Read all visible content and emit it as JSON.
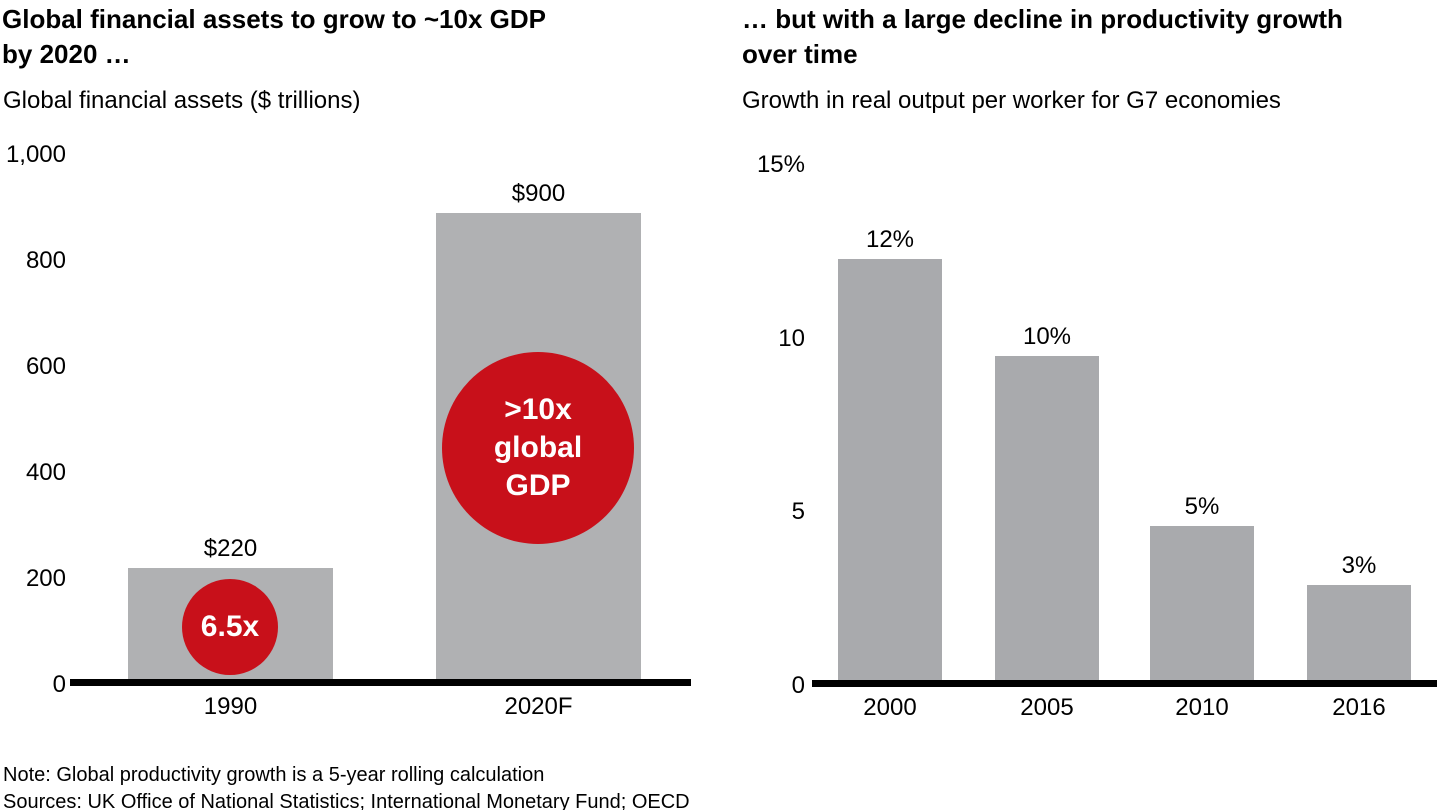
{
  "colors": {
    "background": "#ffffff",
    "bar_gray_left": "#b0b1b3",
    "bar_gray_right": "#a9aaad",
    "accent_red": "#c8101a",
    "axis_black": "#000000",
    "text": "#000000"
  },
  "chart_data": [
    {
      "type": "bar",
      "title": "Global financial assets to grow to ~10x GDP by 2020 …",
      "title_lines": [
        "Global financial assets to grow to ~10x GDP",
        "by 2020 …"
      ],
      "subtitle": "Global financial assets ($ trillions)",
      "categories": [
        "1990",
        "2020F"
      ],
      "values": [
        220,
        900
      ],
      "drawn_values": [
        220,
        890
      ],
      "value_labels": [
        "$220",
        "$900"
      ],
      "ylim": [
        0,
        1000
      ],
      "grid": false,
      "legend": "none",
      "yticks": [
        {
          "value": 0,
          "label": "0"
        },
        {
          "value": 200,
          "label": "200"
        },
        {
          "value": 400,
          "label": "400"
        },
        {
          "value": 600,
          "label": "600"
        },
        {
          "value": 800,
          "label": "800"
        },
        {
          "value": 1000,
          "label": "1,000"
        }
      ],
      "annotations": [
        {
          "bar": "1990",
          "lines": [
            "6.5x"
          ]
        },
        {
          "bar": "2020F",
          "lines": [
            ">10x",
            "global",
            "GDP"
          ]
        }
      ]
    },
    {
      "type": "bar",
      "title": "… but with a large decline in productivity growth over time",
      "title_lines": [
        "… but with a large decline in productivity growth",
        "over time"
      ],
      "subtitle": "Growth in real output per worker for G7 economies",
      "categories": [
        "2000",
        "2005",
        "2010",
        "2016"
      ],
      "values": [
        12,
        10,
        5,
        3
      ],
      "drawn_values": [
        12.3,
        9.5,
        4.6,
        2.9
      ],
      "value_labels": [
        "12%",
        "10%",
        "5%",
        "3%"
      ],
      "ylim": [
        0,
        15
      ],
      "grid": false,
      "legend": "none",
      "yticks": [
        {
          "value": 0,
          "label": "0"
        },
        {
          "value": 5,
          "label": "5"
        },
        {
          "value": 10,
          "label": "10"
        },
        {
          "value": 15,
          "label": "15%"
        }
      ],
      "annotations": []
    }
  ],
  "footer": {
    "note": "Note: Global productivity growth is a 5-year rolling calculation",
    "sources": "Sources: UK Office of National Statistics; International Monetary Fund; OECD"
  }
}
